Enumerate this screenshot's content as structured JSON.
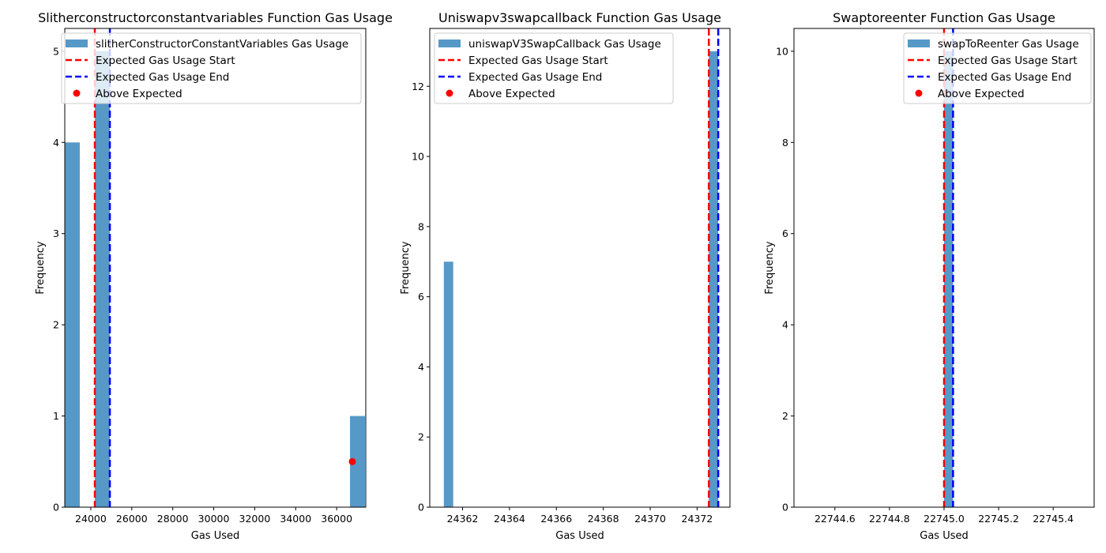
{
  "chart_data": [
    {
      "type": "bar",
      "title": "Slitherconstructorconstantvariables Function Gas Usage",
      "xlabel": "Gas Used",
      "ylabel": "Frequency",
      "xlim": [
        22730,
        37420
      ],
      "ylim": [
        0,
        5.25
      ],
      "xticks": [
        24000,
        26000,
        28000,
        30000,
        32000,
        34000,
        36000
      ],
      "xtick_labels": [
        "24000",
        "26000",
        "28000",
        "30000",
        "32000",
        "34000",
        "36000"
      ],
      "yticks": [
        0,
        1,
        2,
        3,
        4,
        5
      ],
      "ytick_labels": [
        "0",
        "1",
        "2",
        "3",
        "4",
        "5"
      ],
      "bars": [
        {
          "x0": 22730,
          "x1": 23463,
          "value": 4
        },
        {
          "x0": 24197,
          "x1": 24930,
          "value": 5
        },
        {
          "x0": 36650,
          "x1": 37383,
          "value": 1
        }
      ],
      "expected_start": 24197,
      "expected_end": 24930,
      "above_expected_points": [
        {
          "x": 37420,
          "y": 0.5
        }
      ],
      "series": [
        {
          "name": "slitherConstructorConstantVariables Gas Usage",
          "kind": "bar",
          "color": "#5799c6"
        },
        {
          "name": "Expected Gas Usage Start",
          "kind": "line",
          "color": "#ff0000"
        },
        {
          "name": "Expected Gas Usage End",
          "kind": "line",
          "color": "#0000ff"
        },
        {
          "name": "Above Expected",
          "kind": "point",
          "color": "#ff0000"
        }
      ],
      "legend_position": "top-right",
      "grid": false
    },
    {
      "type": "bar",
      "title": "Uniswapv3swapcallback Function Gas Usage",
      "xlabel": "Gas Used",
      "ylabel": "Frequency",
      "xlim": [
        24360.6,
        24373.4
      ],
      "ylim": [
        0,
        13.65
      ],
      "xticks": [
        24362,
        24364,
        24366,
        24368,
        24370,
        24372
      ],
      "xtick_labels": [
        "24362",
        "24364",
        "24366",
        "24368",
        "24370",
        "24372"
      ],
      "yticks": [
        0,
        2,
        4,
        6,
        8,
        10,
        12
      ],
      "ytick_labels": [
        "0",
        "2",
        "4",
        "6",
        "8",
        "10",
        "12"
      ],
      "bars": [
        {
          "x0": 24361.2,
          "x1": 24361.6,
          "value": 7
        },
        {
          "x0": 24372.5,
          "x1": 24372.9,
          "value": 13
        }
      ],
      "expected_start": 24372.5,
      "expected_end": 24372.9,
      "above_expected_points": [],
      "series": [
        {
          "name": "uniswapV3SwapCallback Gas Usage",
          "kind": "bar",
          "color": "#5799c6"
        },
        {
          "name": "Expected Gas Usage Start",
          "kind": "line",
          "color": "#ff0000"
        },
        {
          "name": "Expected Gas Usage End",
          "kind": "line",
          "color": "#0000ff"
        },
        {
          "name": "Above Expected",
          "kind": "point",
          "color": "#ff0000"
        }
      ],
      "legend_position": "top-left",
      "grid": false
    },
    {
      "type": "bar",
      "title": "Swaptoreenter Function Gas Usage",
      "xlabel": "Gas Used",
      "ylabel": "Frequency",
      "xlim": [
        22744.45,
        22745.55
      ],
      "ylim": [
        0,
        10.5
      ],
      "xticks": [
        22744.6,
        22744.8,
        22745.0,
        22745.2,
        22745.4
      ],
      "xtick_labels": [
        "22744.6",
        "22744.8",
        "22745.0",
        "22745.2",
        "22745.4"
      ],
      "yticks": [
        0,
        2,
        4,
        6,
        8,
        10
      ],
      "ytick_labels": [
        "0",
        "2",
        "4",
        "6",
        "8",
        "10"
      ],
      "bars": [
        {
          "x0": 22745.0,
          "x1": 22745.033,
          "value": 10
        }
      ],
      "expected_start": 22745.0,
      "expected_end": 22745.033,
      "above_expected_points": [],
      "series": [
        {
          "name": "swapToReenter Gas Usage",
          "kind": "bar",
          "color": "#5799c6"
        },
        {
          "name": "Expected Gas Usage Start",
          "kind": "line",
          "color": "#ff0000"
        },
        {
          "name": "Expected Gas Usage End",
          "kind": "line",
          "color": "#0000ff"
        },
        {
          "name": "Above Expected",
          "kind": "point",
          "color": "#ff0000"
        }
      ],
      "legend_position": "top-right",
      "grid": false
    }
  ]
}
